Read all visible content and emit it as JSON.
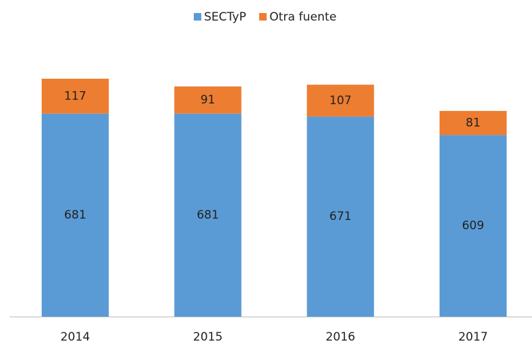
{
  "chart_data": {
    "type": "stacked_bar",
    "categories": [
      "2014",
      "2015",
      "2016",
      "2017"
    ],
    "series": [
      {
        "name": "SECTyP",
        "color": "#5b9bd5",
        "values": [
          681,
          681,
          671,
          609
        ]
      },
      {
        "name": "Otra fuente",
        "color": "#ed7d31",
        "values": [
          117,
          91,
          107,
          81
        ]
      }
    ],
    "ylim": [
      0,
      900
    ],
    "legend": "top"
  }
}
